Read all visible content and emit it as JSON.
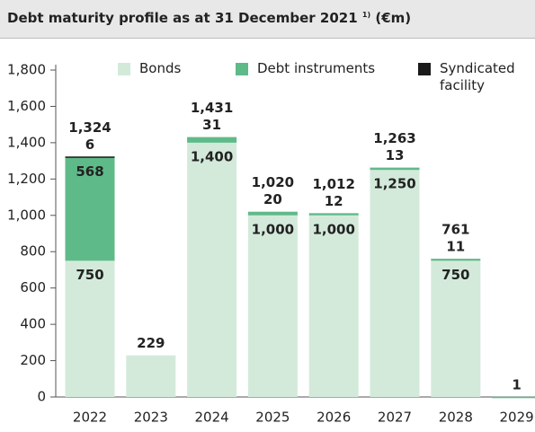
{
  "chart_data": {
    "type": "stacked_bar",
    "title": "Debt maturity profile as at 31 December 2021",
    "title_note": "1)",
    "title_unit": "(€m)",
    "categories": [
      "2022",
      "2023",
      "2024",
      "2025",
      "2026",
      "2027",
      "2028",
      "2029"
    ],
    "series": [
      {
        "name": "Bonds",
        "color": "#d3eadb",
        "values": [
          750,
          229,
          1400,
          1000,
          1000,
          1250,
          750,
          null
        ],
        "value_labels": [
          "750",
          "229",
          "1,400",
          "1,000",
          "1,000",
          "1,250",
          "750",
          null
        ]
      },
      {
        "name": "Debt instruments",
        "color": "#5fba89",
        "values": [
          568,
          null,
          31,
          20,
          12,
          13,
          11,
          1
        ]
      },
      {
        "name": "Syndicated facility",
        "color": "#1a1a1a",
        "values": [
          6,
          null,
          null,
          null,
          null,
          null,
          null,
          null
        ]
      }
    ],
    "totals": [
      1324,
      null,
      1431,
      1020,
      1012,
      1263,
      761,
      null
    ],
    "total_labels": [
      "1,324",
      null,
      "1,431",
      "1,020",
      "1,012",
      "1,263",
      "761",
      null
    ],
    "ylim": [
      0,
      1800
    ],
    "yticks": [
      0,
      200,
      400,
      600,
      800,
      {
        "value": 1000,
        "label": "1,000"
      },
      {
        "value": 1200,
        "label": "1,200"
      },
      {
        "value": 1400,
        "label": "1,400"
      },
      {
        "value": 1600,
        "label": "1,600"
      },
      {
        "value": 1800,
        "label": "1,800"
      }
    ],
    "grid": false
  }
}
